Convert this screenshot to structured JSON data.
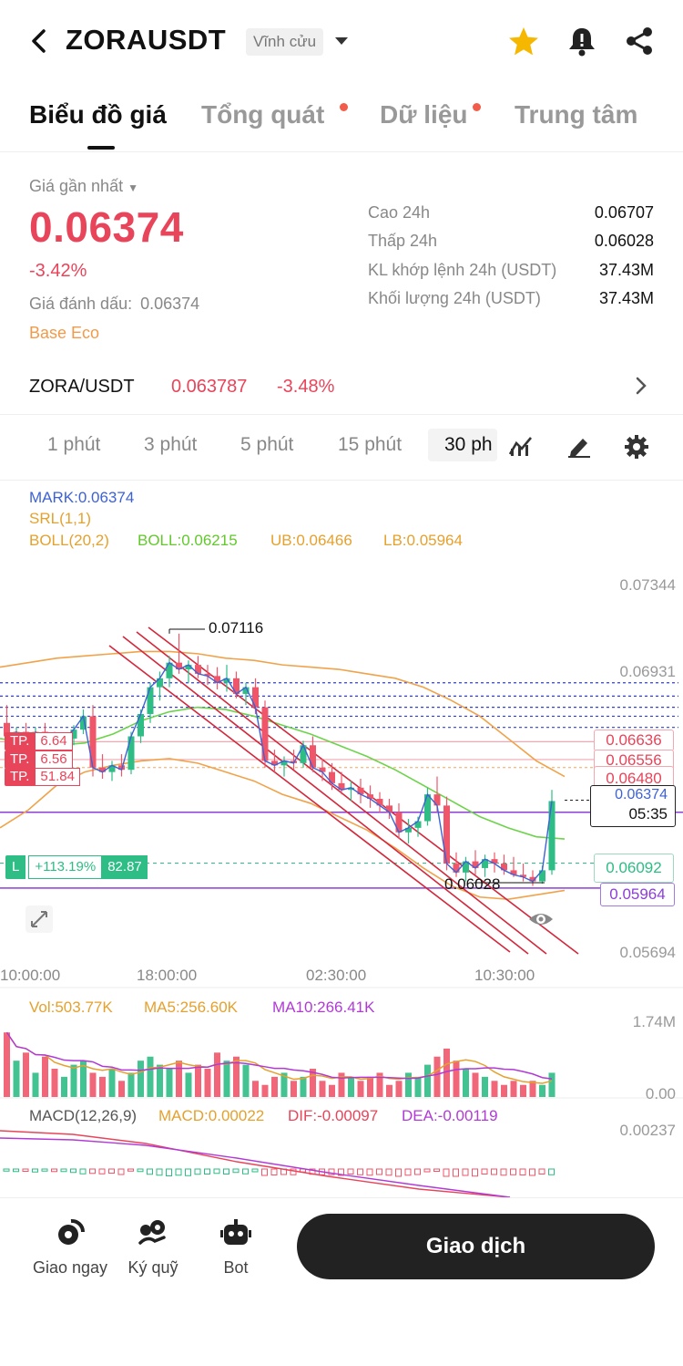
{
  "header": {
    "symbol": "ZORAUSDT",
    "contract_type": "Vĩnh cửu",
    "icons": [
      "back-arrow-icon",
      "chevron-down-icon",
      "star-icon",
      "alert-bell-icon",
      "share-icon"
    ]
  },
  "tabs": [
    {
      "label": "Biểu đồ giá",
      "active": true
    },
    {
      "label": "Tổng quát",
      "dot": true
    },
    {
      "label": "Dữ liệu",
      "dot": true
    },
    {
      "label": "Trung tâm"
    }
  ],
  "price": {
    "label": "Giá gần nhất",
    "last": "0.06374",
    "change_pct": "-3.42%",
    "mark_label": "Giá đánh dấu:",
    "mark_value": "0.06374",
    "tag": "Base Eco"
  },
  "stats": [
    {
      "label": "Cao 24h",
      "value": "0.06707"
    },
    {
      "label": "Thấp 24h",
      "value": "0.06028"
    },
    {
      "label": "KL khớp lệnh 24h (USDT)",
      "value": "37.43M"
    },
    {
      "label": "Khối lượng 24h (USDT)",
      "value": "37.43M"
    }
  ],
  "spot": {
    "pair": "ZORA/USDT",
    "price": "0.063787",
    "change": "-3.48%"
  },
  "timeframes": [
    "1 phút",
    "3 phút",
    "5 phút",
    "15 phút",
    "30 ph"
  ],
  "chart_tools": [
    "indicator-icon",
    "draw-icon",
    "settings-icon"
  ],
  "chart_data": {
    "type": "candlestick",
    "indicators": {
      "mark": "MARK:0.06374",
      "srl": "SRL(1,1)",
      "boll_name": "BOLL(20,2)",
      "boll_mid": "BOLL:0.06215",
      "boll_ub": "UB:0.06466",
      "boll_lb": "LB:0.05964"
    },
    "y_ticks": [
      "0.07344",
      "0.06931",
      "0.05694"
    ],
    "x_ticks": [
      "10:00:00",
      "18:00:00",
      "02:30:00",
      "10:30:00"
    ],
    "ylim": [
      0.05694,
      0.07344
    ],
    "high_label": "0.07116",
    "low_label": "0.06028",
    "price_labels": {
      "tp1": "0.06636",
      "tp2": "0.06556",
      "boll_ub": "0.06480",
      "last": "0.06374",
      "countdown": "05:35",
      "entry": "0.06092",
      "boll_lb": "0.05964"
    },
    "tp_orders": [
      {
        "label": "TP.",
        "value": "6.64"
      },
      {
        "label": "TP.",
        "value": "6.56"
      },
      {
        "label": "TP.",
        "value": "51.84"
      }
    ],
    "position": {
      "side": "L",
      "pnl": "+113.19%",
      "size": "82.87"
    },
    "candles": [
      [
        0.0672,
        0.068,
        0.0664,
        0.0666
      ],
      [
        0.0666,
        0.067,
        0.066,
        0.0668
      ],
      [
        0.0668,
        0.0672,
        0.0661,
        0.0663
      ],
      [
        0.0663,
        0.067,
        0.066,
        0.0668
      ],
      [
        0.0668,
        0.0672,
        0.0662,
        0.0664
      ],
      [
        0.0664,
        0.0668,
        0.0658,
        0.066
      ],
      [
        0.066,
        0.0667,
        0.0657,
        0.0665
      ],
      [
        0.0665,
        0.0671,
        0.0662,
        0.0669
      ],
      [
        0.0669,
        0.0678,
        0.0667,
        0.0675
      ],
      [
        0.0675,
        0.068,
        0.0648,
        0.0652
      ],
      [
        0.0652,
        0.0658,
        0.0647,
        0.065
      ],
      [
        0.065,
        0.0655,
        0.0646,
        0.0653
      ],
      [
        0.0653,
        0.0658,
        0.0648,
        0.0651
      ],
      [
        0.0651,
        0.0668,
        0.0649,
        0.0666
      ],
      [
        0.0666,
        0.0678,
        0.0663,
        0.0676
      ],
      [
        0.0676,
        0.069,
        0.0672,
        0.0688
      ],
      [
        0.0688,
        0.0695,
        0.0682,
        0.0692
      ],
      [
        0.0692,
        0.0702,
        0.0688,
        0.0699
      ],
      [
        0.0699,
        0.0712,
        0.0694,
        0.0696
      ],
      [
        0.0696,
        0.07,
        0.069,
        0.0698
      ],
      [
        0.0698,
        0.0702,
        0.0692,
        0.0694
      ],
      [
        0.0694,
        0.0698,
        0.0689,
        0.0693
      ],
      [
        0.0693,
        0.0697,
        0.0687,
        0.069
      ],
      [
        0.069,
        0.0698,
        0.0686,
        0.0692
      ],
      [
        0.0692,
        0.0695,
        0.0683,
        0.0685
      ],
      [
        0.0685,
        0.069,
        0.068,
        0.0688
      ],
      [
        0.0688,
        0.0692,
        0.0676,
        0.0679
      ],
      [
        0.0679,
        0.0682,
        0.0652,
        0.0655
      ],
      [
        0.0655,
        0.066,
        0.065,
        0.0653
      ],
      [
        0.0653,
        0.0657,
        0.0648,
        0.0655
      ],
      [
        0.0655,
        0.066,
        0.0651,
        0.0654
      ],
      [
        0.0654,
        0.0664,
        0.0652,
        0.0662
      ],
      [
        0.0662,
        0.0666,
        0.065,
        0.0652
      ],
      [
        0.0652,
        0.0656,
        0.0646,
        0.065
      ],
      [
        0.065,
        0.0654,
        0.0642,
        0.0645
      ],
      [
        0.0645,
        0.065,
        0.064,
        0.0642
      ],
      [
        0.0642,
        0.0646,
        0.0637,
        0.0643
      ],
      [
        0.0643,
        0.0647,
        0.0636,
        0.064
      ],
      [
        0.064,
        0.0644,
        0.0634,
        0.0638
      ],
      [
        0.0638,
        0.0641,
        0.0632,
        0.0635
      ],
      [
        0.0635,
        0.0638,
        0.0629,
        0.0632
      ],
      [
        0.0632,
        0.0636,
        0.062,
        0.0623
      ],
      [
        0.0623,
        0.0629,
        0.0618,
        0.0625
      ],
      [
        0.0625,
        0.063,
        0.0621,
        0.0628
      ],
      [
        0.0628,
        0.0643,
        0.0626,
        0.064
      ],
      [
        0.064,
        0.0648,
        0.0632,
        0.0635
      ],
      [
        0.0635,
        0.0639,
        0.0606,
        0.0609
      ],
      [
        0.0609,
        0.0614,
        0.0603,
        0.0605
      ],
      [
        0.0605,
        0.0612,
        0.0601,
        0.061
      ],
      [
        0.061,
        0.0615,
        0.0604,
        0.0607
      ],
      [
        0.0607,
        0.0613,
        0.0603,
        0.0611
      ],
      [
        0.0611,
        0.0614,
        0.0605,
        0.0609
      ],
      [
        0.0609,
        0.0613,
        0.0604,
        0.0606
      ],
      [
        0.0606,
        0.0612,
        0.0603,
        0.0604
      ],
      [
        0.0604,
        0.0609,
        0.0601,
        0.0603
      ],
      [
        0.0603,
        0.0606,
        0.0599,
        0.0601
      ],
      [
        0.0601,
        0.0608,
        0.06,
        0.0606
      ],
      [
        0.0606,
        0.0642,
        0.0604,
        0.0637
      ]
    ],
    "boll_upper": [
      0.0697,
      0.0699,
      0.0701,
      0.0702,
      0.0703,
      0.0704,
      0.0704,
      0.0703,
      0.0701,
      0.07,
      0.0698,
      0.0697,
      0.0696,
      0.0694,
      0.0692,
      0.0688,
      0.0682,
      0.0675,
      0.0665,
      0.0655,
      0.0648
    ],
    "boll_mid": [
      0.0665,
      0.0663,
      0.0662,
      0.0663,
      0.0667,
      0.0673,
      0.0677,
      0.0679,
      0.0678,
      0.0675,
      0.0671,
      0.0667,
      0.0662,
      0.0657,
      0.0651,
      0.0644,
      0.0637,
      0.063,
      0.0625,
      0.0621,
      0.062
    ],
    "boll_lower": [
      0.0625,
      0.0633,
      0.0644,
      0.065,
      0.0653,
      0.0655,
      0.0656,
      0.0654,
      0.065,
      0.0646,
      0.064,
      0.0636,
      0.063,
      0.0624,
      0.0616,
      0.0607,
      0.0599,
      0.0594,
      0.0593,
      0.0595,
      0.0597
    ],
    "volume": {
      "label": "Vol:503.77K",
      "ma5": "MA5:256.60K",
      "ma10": "MA10:266.41K",
      "y_ticks": [
        "1.74M",
        "0.00"
      ],
      "bars": [
        1.6,
        0.9,
        1.1,
        0.6,
        1.0,
        0.7,
        0.5,
        0.8,
        0.9,
        0.6,
        0.5,
        0.7,
        0.4,
        0.6,
        0.9,
        1.0,
        0.8,
        0.7,
        0.9,
        0.6,
        0.8,
        0.7,
        1.1,
        0.9,
        1.0,
        0.8,
        0.4,
        0.3,
        0.5,
        0.6,
        0.4,
        0.5,
        0.7,
        0.4,
        0.3,
        0.6,
        0.5,
        0.4,
        0.5,
        0.6,
        0.3,
        0.4,
        0.6,
        0.5,
        0.8,
        1.0,
        1.2,
        0.9,
        0.7,
        0.6,
        0.5,
        0.4,
        0.3,
        0.4,
        0.3,
        0.4,
        0.3,
        0.6
      ]
    },
    "macd": {
      "label": "MACD(12,26,9)",
      "macd": "MACD:0.00022",
      "dif": "DIF:-0.00097",
      "dea": "DEA:-0.00119",
      "y_ticks": [
        "0.00237"
      ]
    }
  },
  "bottom_bar": {
    "items": [
      {
        "label": "Giao ngay",
        "icon": "spot-icon"
      },
      {
        "label": "Ký quỹ",
        "icon": "margin-icon"
      },
      {
        "label": "Bot",
        "icon": "bot-icon"
      }
    ],
    "trade_button": "Giao dịch"
  },
  "colors": {
    "up": "#2dbd85",
    "down": "#f0566a",
    "boll_mid": "#6dd34b",
    "boll_band": "#f0a34a",
    "mark": "#3d62d6"
  }
}
